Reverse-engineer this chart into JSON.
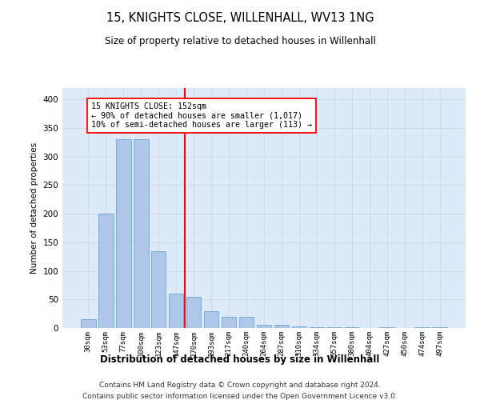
{
  "title": "15, KNIGHTS CLOSE, WILLENHALL, WV13 1NG",
  "subtitle": "Size of property relative to detached houses in Willenhall",
  "xlabel": "Distribution of detached houses by size in Willenhall",
  "ylabel": "Number of detached properties",
  "bin_labels": [
    "30sqm",
    "53sqm",
    "77sqm",
    "100sqm",
    "123sqm",
    "147sqm",
    "170sqm",
    "193sqm",
    "217sqm",
    "240sqm",
    "264sqm",
    "287sqm",
    "310sqm",
    "334sqm",
    "357sqm",
    "380sqm",
    "404sqm",
    "427sqm",
    "450sqm",
    "474sqm",
    "497sqm"
  ],
  "bar_heights": [
    15,
    200,
    330,
    330,
    135,
    60,
    55,
    30,
    20,
    20,
    5,
    5,
    3,
    2,
    2,
    2,
    0,
    2,
    0,
    2,
    2
  ],
  "bar_color": "#aec6e8",
  "bar_edge_color": "#5a9fd4",
  "red_line_x": 5.5,
  "annotation_line1": "15 KNIGHTS CLOSE: 152sqm",
  "annotation_line2": "← 90% of detached houses are smaller (1,017)",
  "annotation_line3": "10% of semi-detached houses are larger (113) →",
  "footnote1": "Contains HM Land Registry data © Crown copyright and database right 2024.",
  "footnote2": "Contains public sector information licensed under the Open Government Licence v3.0.",
  "ylim": [
    0,
    420
  ],
  "yticks": [
    0,
    50,
    100,
    150,
    200,
    250,
    300,
    350,
    400
  ],
  "grid_color": "#ccdaeb",
  "bg_color": "#deeaf7"
}
